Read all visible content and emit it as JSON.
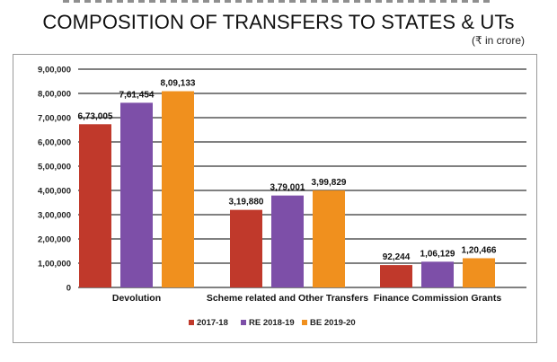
{
  "header": {
    "title": "COMPOSITION OF TRANSFERS TO STATES & UTs",
    "unit": "(₹ in crore)"
  },
  "colors": {
    "2017-18": "#c0392b",
    "RE 2018-19": "#7d4fa8",
    "BE 2019-20": "#f0901e",
    "gridline": "#000000",
    "axis_text": "#222222"
  },
  "chart_data": {
    "type": "bar",
    "title": "COMPOSITION OF TRANSFERS TO STATES & UTs",
    "ylabel": "",
    "xlabel": "",
    "unit": "(₹ in crore)",
    "ylim": [
      0,
      900000
    ],
    "yticks": [
      0,
      100000,
      200000,
      300000,
      400000,
      500000,
      600000,
      700000,
      800000,
      900000
    ],
    "ytick_labels": [
      "0",
      "1,00,000",
      "2,00,000",
      "3,00,000",
      "4,00,000",
      "5,00,000",
      "6,00,000",
      "7,00,000",
      "8,00,000",
      "9,00,000"
    ],
    "categories": [
      "Devolution",
      "Scheme related and Other Transfers",
      "Finance Commission Grants"
    ],
    "series": [
      {
        "name": "2017-18",
        "values": [
          673005,
          319880,
          92244
        ],
        "labels": [
          "6,73,005",
          "3,19,880",
          "92,244"
        ]
      },
      {
        "name": "RE 2018-19",
        "values": [
          761454,
          379001,
          106129
        ],
        "labels": [
          "7,61,454",
          "3,79,001",
          "1,06,129"
        ]
      },
      {
        "name": "BE 2019-20",
        "values": [
          809133,
          399829,
          120466
        ],
        "labels": [
          "8,09,133",
          "3,99,829",
          "1,20,466"
        ]
      }
    ],
    "grid": true,
    "legend": "bottom-center"
  }
}
